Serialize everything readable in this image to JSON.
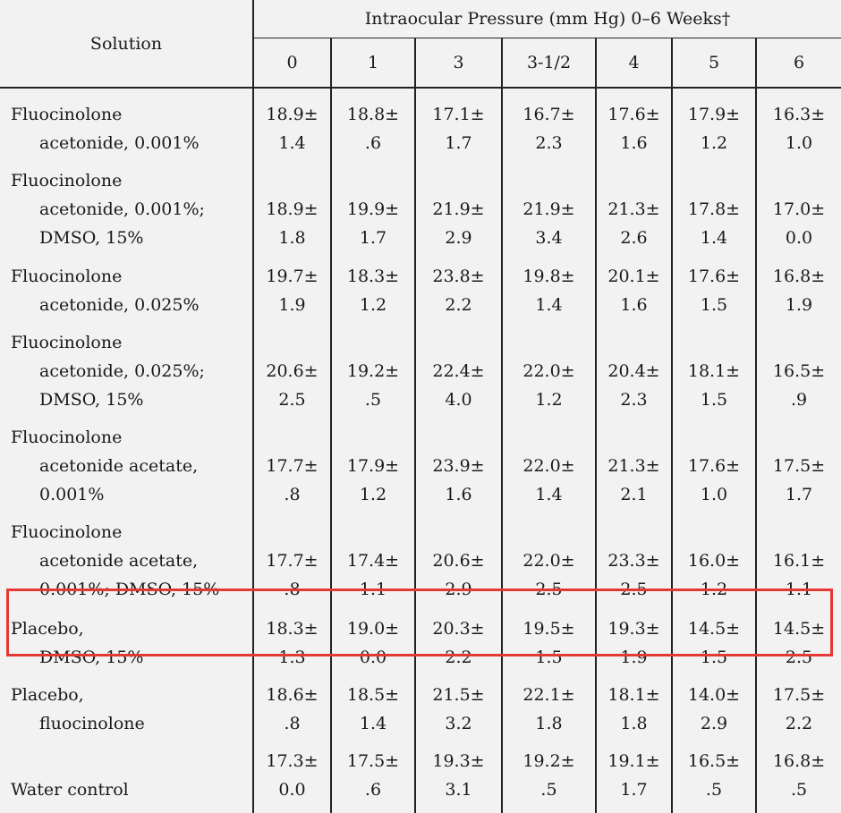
{
  "header": {
    "solution_label": "Solution",
    "group_label": "Intraocular Pressure (mm Hg) 0–6 Weeks†",
    "weeks": [
      "0",
      "1",
      "3",
      "3-1/2",
      "4",
      "5",
      "6"
    ]
  },
  "rows": [
    {
      "name": [
        "Fluocinolone",
        "acetonide, 0.001%"
      ],
      "values": [
        [
          "18.9±",
          "1.4"
        ],
        [
          "18.8±",
          ".6"
        ],
        [
          "17.1±",
          "1.7"
        ],
        [
          "16.7±",
          "2.3"
        ],
        [
          "17.6±",
          "1.6"
        ],
        [
          "17.9±",
          "1.2"
        ],
        [
          "16.3±",
          "1.0"
        ]
      ]
    },
    {
      "name": [
        "Fluocinolone",
        "acetonide, 0.001%;",
        "DMSO, 15%"
      ],
      "values": [
        [
          "18.9±",
          "1.8"
        ],
        [
          "19.9±",
          "1.7"
        ],
        [
          "21.9±",
          "2.9"
        ],
        [
          "21.9±",
          "3.4"
        ],
        [
          "21.3±",
          "2.6"
        ],
        [
          "17.8±",
          "1.4"
        ],
        [
          "17.0±",
          "0.0"
        ]
      ]
    },
    {
      "name": [
        "Fluocinolone",
        "acetonide, 0.025%"
      ],
      "values": [
        [
          "19.7±",
          "1.9"
        ],
        [
          "18.3±",
          "1.2"
        ],
        [
          "23.8±",
          "2.2"
        ],
        [
          "19.8±",
          "1.4"
        ],
        [
          "20.1±",
          "1.6"
        ],
        [
          "17.6±",
          "1.5"
        ],
        [
          "16.8±",
          "1.9"
        ]
      ]
    },
    {
      "name": [
        "Fluocinolone",
        "acetonide, 0.025%;",
        "DMSO, 15%"
      ],
      "values": [
        [
          "20.6±",
          "2.5"
        ],
        [
          "19.2±",
          ".5"
        ],
        [
          "22.4±",
          "4.0"
        ],
        [
          "22.0±",
          "1.2"
        ],
        [
          "20.4±",
          "2.3"
        ],
        [
          "18.1±",
          "1.5"
        ],
        [
          "16.5±",
          ".9"
        ]
      ]
    },
    {
      "name": [
        "Fluocinolone",
        "acetonide acetate,",
        "0.001%"
      ],
      "values": [
        [
          "17.7±",
          ".8"
        ],
        [
          "17.9±",
          "1.2"
        ],
        [
          "23.9±",
          "1.6"
        ],
        [
          "22.0±",
          "1.4"
        ],
        [
          "21.3±",
          "2.1"
        ],
        [
          "17.6±",
          "1.0"
        ],
        [
          "17.5±",
          "1.7"
        ]
      ]
    },
    {
      "name": [
        "Fluocinolone",
        "acetonide acetate,",
        "0.001%; DMSO, 15%"
      ],
      "values": [
        [
          "17.7±",
          ".8"
        ],
        [
          "17.4±",
          "1.1"
        ],
        [
          "20.6±",
          "2.9"
        ],
        [
          "22.0±",
          "2.5"
        ],
        [
          "23.3±",
          "2.5"
        ],
        [
          "16.0±",
          "1.2"
        ],
        [
          "16.1±",
          "1.1"
        ]
      ]
    },
    {
      "name": [
        "Placebo,",
        "DMSO, 15%"
      ],
      "highlighted": true,
      "values": [
        [
          "18.3±",
          "1.3"
        ],
        [
          "19.0±",
          "0.0"
        ],
        [
          "20.3±",
          "2.2"
        ],
        [
          "19.5±",
          "1.5"
        ],
        [
          "19.3±",
          "1.9"
        ],
        [
          "14.5±",
          "1.5"
        ],
        [
          "14.5±",
          "2.5"
        ]
      ]
    },
    {
      "name": [
        "Placebo,",
        "fluocinolone"
      ],
      "values": [
        [
          "18.6±",
          ".8"
        ],
        [
          "18.5±",
          "1.4"
        ],
        [
          "21.5±",
          "3.2"
        ],
        [
          "22.1±",
          "1.8"
        ],
        [
          "18.1±",
          "1.8"
        ],
        [
          "14.0±",
          "2.9"
        ],
        [
          "17.5±",
          "2.2"
        ]
      ]
    },
    {
      "name": [
        "Water control"
      ],
      "values": [
        [
          "17.3±",
          "0.0"
        ],
        [
          "17.5±",
          ".6"
        ],
        [
          "19.3±",
          "3.1"
        ],
        [
          "19.2±",
          ".5"
        ],
        [
          "19.1±",
          "1.7"
        ],
        [
          "16.5±",
          ".5"
        ],
        [
          "16.8±",
          ".5"
        ]
      ]
    }
  ],
  "highlight_color": "#e53935"
}
